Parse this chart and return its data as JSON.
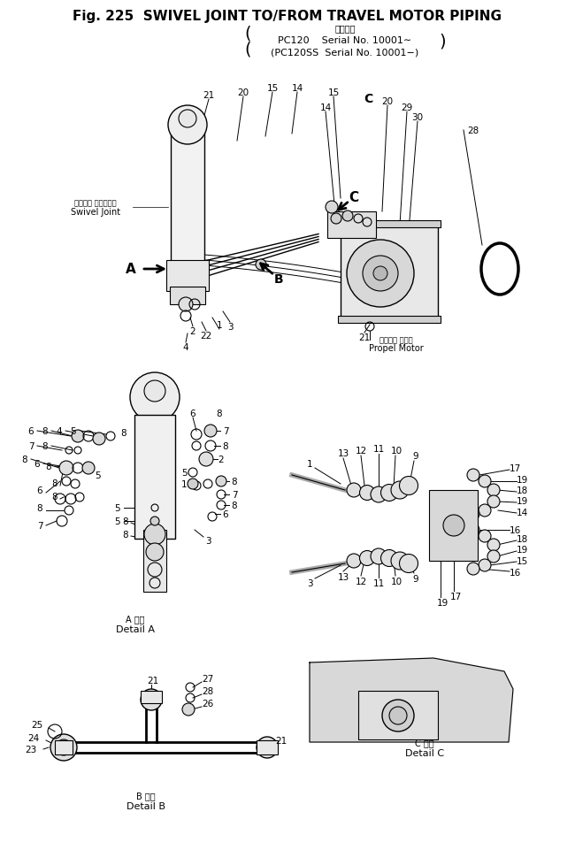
{
  "title_line1": "Fig. 225  SWIVEL JOINT TO/FROM TRAVEL MOTOR PIPING",
  "title_line2": "適用号機",
  "title_line3": "PC120    Serial No. 10001∼",
  "title_line4": "(PC120SS  Serial No. 10001−)",
  "background_color": "#ffffff",
  "line_color": "#000000",
  "fig_width": 6.5,
  "fig_height": 9.62,
  "dpi": 100
}
